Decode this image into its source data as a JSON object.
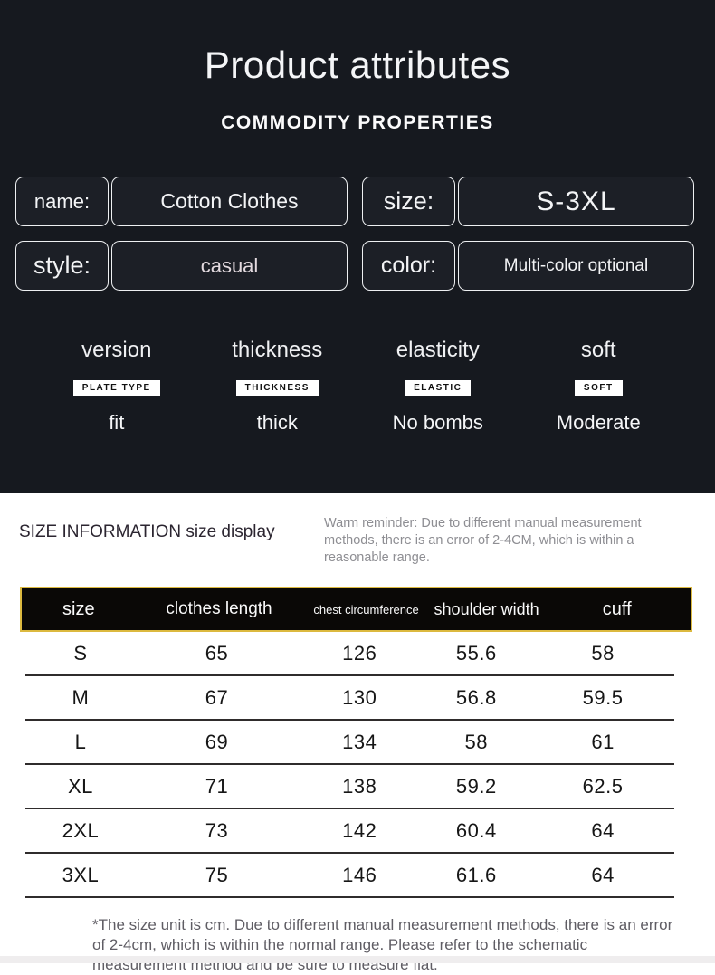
{
  "header": {
    "title": "Product attributes",
    "subtitle": "COMMODITY PROPERTIES"
  },
  "fields": [
    {
      "label": "name:",
      "value": "Cotton Clothes"
    },
    {
      "label": "size:",
      "value": "S-3XL"
    },
    {
      "label": "style:",
      "value": "casual"
    },
    {
      "label": "color:",
      "value": "Multi-color optional"
    }
  ],
  "attributes": [
    {
      "title": "version",
      "badge": "PLATE TYPE",
      "value": "fit"
    },
    {
      "title": "thickness",
      "badge": "THICKNESS",
      "value": "thick"
    },
    {
      "title": "elasticity",
      "badge": "ELASTIC",
      "value": "No bombs"
    },
    {
      "title": "soft",
      "badge": "SOFT",
      "value": "Moderate"
    }
  ],
  "size_section": {
    "heading": "SIZE INFORMATION size display",
    "reminder": "Warm reminder: Due to different manual measurement methods, there is an error of 2-4CM, which is within a reasonable range.",
    "footnote": "*The size unit is cm. Due to different manual measurement methods, there is an error of 2-4cm, which is within the normal range. Please refer to the schematic measurement method and be sure to measure flat."
  },
  "chart_data": {
    "type": "table",
    "title": "SIZE INFORMATION size display",
    "columns": [
      "size",
      "clothes length",
      "chest circumference",
      "shoulder width",
      "cuff"
    ],
    "rows": [
      [
        "S",
        "65",
        "126",
        "55.6",
        "58"
      ],
      [
        "M",
        "67",
        "130",
        "56.8",
        "59.5"
      ],
      [
        "L",
        "69",
        "134",
        "58",
        "61"
      ],
      [
        "XL",
        "71",
        "138",
        "59.2",
        "62.5"
      ],
      [
        "2XL",
        "73",
        "142",
        "60.4",
        "64"
      ],
      [
        "3XL",
        "75",
        "146",
        "61.6",
        "64"
      ]
    ]
  },
  "colors": {
    "dark_background": "#16191f",
    "field_box_background": "#1c1f26",
    "table_header_background": "#0a0806",
    "table_header_border": "#dcb93f",
    "reminder_text": "#8e8e93"
  }
}
